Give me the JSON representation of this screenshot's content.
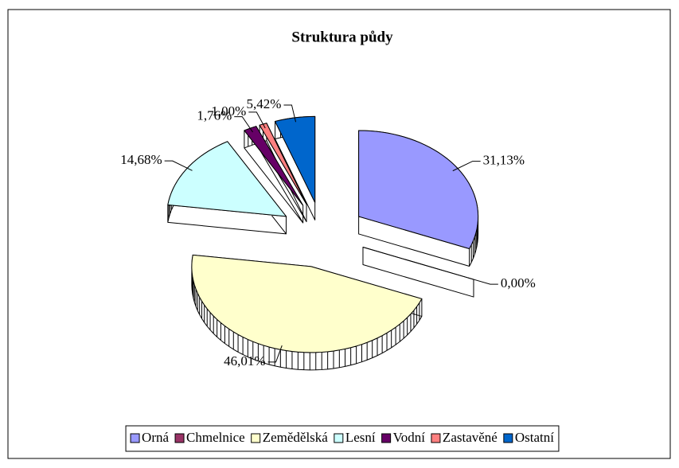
{
  "chart_data": {
    "type": "pie3d",
    "title": "Struktura půdy",
    "categories": [
      "Orná",
      "Chmelnice",
      "Zemědělská",
      "Lesní",
      "Vodní",
      "Zastavěné",
      "Ostatní"
    ],
    "values": [
      31.13,
      0.0,
      46.01,
      14.68,
      1.76,
      1.0,
      5.42
    ],
    "value_labels": [
      "31,13%",
      "0,00%",
      "46,01%",
      "14,68%",
      "1,76%",
      "1,00%",
      "5,42%"
    ],
    "colors": [
      "#9999ff",
      "#993366",
      "#ffffcc",
      "#ccffff",
      "#660066",
      "#ff8080",
      "#0066cc"
    ],
    "legend": "bottom"
  }
}
